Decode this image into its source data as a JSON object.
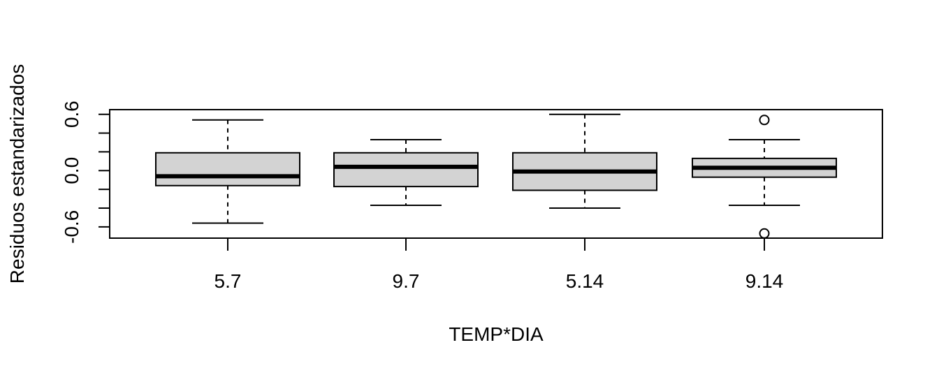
{
  "chart_data": {
    "type": "boxplot",
    "title": "",
    "xlabel": "TEMP*DIA",
    "ylabel": "Residuos estandarizados",
    "categories": [
      "5.7",
      "9.7",
      "5.14",
      "9.14"
    ],
    "ylim": [
      -0.72,
      0.65
    ],
    "yticks": [
      -0.6,
      -0.4,
      -0.2,
      0.0,
      0.2,
      0.4,
      0.6
    ],
    "ytick_labels": [
      "-0.6",
      "",
      "",
      "0.0",
      "",
      "",
      "0.6"
    ],
    "grid": false,
    "legend": "none",
    "boxes": [
      {
        "category": "5.7",
        "whisker_low": -0.56,
        "q1": -0.16,
        "median": -0.06,
        "q3": 0.19,
        "whisker_high": 0.54,
        "outliers": []
      },
      {
        "category": "9.7",
        "whisker_low": -0.37,
        "q1": -0.17,
        "median": 0.04,
        "q3": 0.19,
        "whisker_high": 0.33,
        "outliers": []
      },
      {
        "category": "5.14",
        "whisker_low": -0.4,
        "q1": -0.21,
        "median": -0.01,
        "q3": 0.19,
        "whisker_high": 0.6,
        "outliers": []
      },
      {
        "category": "9.14",
        "whisker_low": -0.37,
        "q1": -0.07,
        "median": 0.03,
        "q3": 0.13,
        "whisker_high": 0.33,
        "outliers": [
          0.54,
          -0.67
        ]
      }
    ],
    "colors": {
      "box_fill": "#d3d3d3",
      "stroke": "#000000"
    }
  }
}
